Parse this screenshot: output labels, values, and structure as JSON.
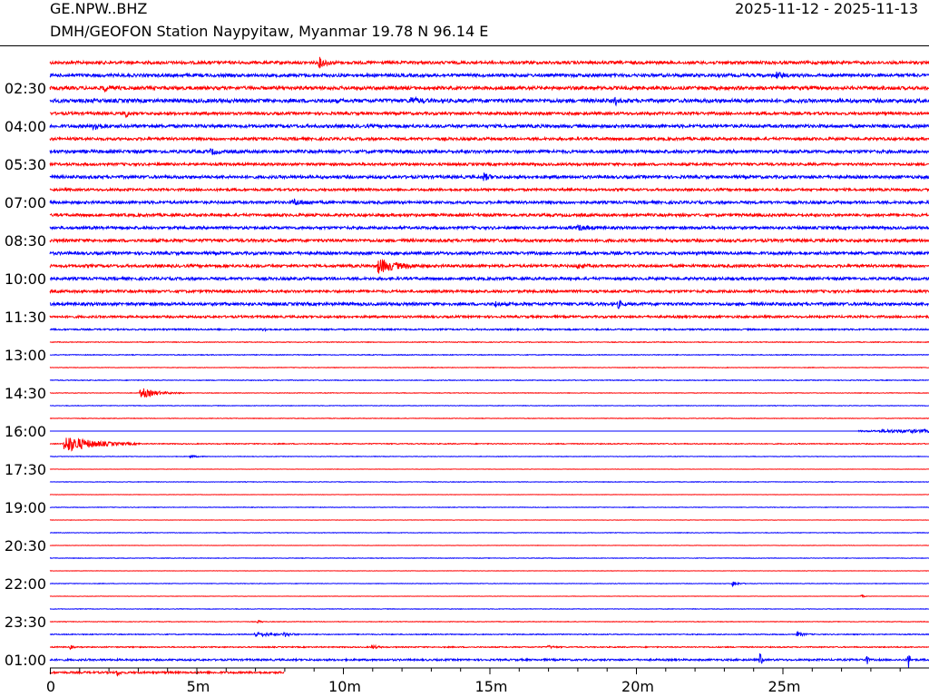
{
  "header": {
    "station": "GE.NPW..BHZ",
    "description": "DMH/GEOFON Station Naypyitaw, Myanmar  19.78 N 96.14 E",
    "date_range": "2025-11-12 - 2025-11-13"
  },
  "chart_data": {
    "type": "line",
    "title": "",
    "xlabel": "",
    "ylabel": "",
    "x_unit": "minutes",
    "xlim": [
      0,
      30
    ],
    "x_ticks": [
      {
        "value": 0,
        "label": "0"
      },
      {
        "value": 5,
        "label": "5m"
      },
      {
        "value": 10,
        "label": "10m"
      },
      {
        "value": 15,
        "label": "15m"
      },
      {
        "value": 20,
        "label": "20m"
      },
      {
        "value": 25,
        "label": "25m"
      }
    ],
    "minor_tick_step": 1,
    "trace_interval_minutes": 30,
    "colors": [
      "#ff0000",
      "#0000ff"
    ],
    "y_labels": [
      {
        "trace": 2,
        "label": "02:30"
      },
      {
        "trace": 5,
        "label": "04:00"
      },
      {
        "trace": 8,
        "label": "05:30"
      },
      {
        "trace": 11,
        "label": "07:00"
      },
      {
        "trace": 14,
        "label": "08:30"
      },
      {
        "trace": 17,
        "label": "10:00"
      },
      {
        "trace": 20,
        "label": "11:30"
      },
      {
        "trace": 23,
        "label": "13:00"
      },
      {
        "trace": 26,
        "label": "14:30"
      },
      {
        "trace": 29,
        "label": "16:00"
      },
      {
        "trace": 32,
        "label": "17:30"
      },
      {
        "trace": 35,
        "label": "19:00"
      },
      {
        "trace": 38,
        "label": "20:30"
      },
      {
        "trace": 41,
        "label": "22:00"
      },
      {
        "trace": 44,
        "label": "23:30"
      },
      {
        "trace": 47,
        "label": "01:00"
      }
    ],
    "traces": [
      {
        "noise": 1.6,
        "events": [
          {
            "t": 9.2,
            "amp": 5,
            "dur": 0.7
          }
        ]
      },
      {
        "noise": 1.7,
        "events": [
          {
            "t": 24.8,
            "amp": 3,
            "dur": 0.6
          }
        ]
      },
      {
        "noise": 1.8,
        "events": [
          {
            "t": 1.8,
            "amp": 3,
            "dur": 0.8
          }
        ]
      },
      {
        "noise": 2.0,
        "events": [
          {
            "t": 19.3,
            "amp": 4,
            "dur": 0.2
          },
          {
            "t": 12.3,
            "amp": 3,
            "dur": 0.8
          }
        ]
      },
      {
        "noise": 1.5,
        "events": [
          {
            "t": 2.6,
            "amp": 7,
            "dur": 0.15
          }
        ]
      },
      {
        "noise": 1.7,
        "events": [
          {
            "t": 1.5,
            "amp": 5,
            "dur": 0.6
          }
        ]
      },
      {
        "noise": 1.5,
        "events": []
      },
      {
        "noise": 1.7,
        "events": [
          {
            "t": 5.5,
            "amp": 2.5,
            "dur": 0.6
          }
        ]
      },
      {
        "noise": 1.4,
        "events": []
      },
      {
        "noise": 1.6,
        "events": [
          {
            "t": 14.8,
            "amp": 4,
            "dur": 0.5
          }
        ]
      },
      {
        "noise": 1.3,
        "events": []
      },
      {
        "noise": 1.5,
        "events": [
          {
            "t": 8.3,
            "amp": 3,
            "dur": 1.0
          }
        ]
      },
      {
        "noise": 1.5,
        "events": []
      },
      {
        "noise": 1.5,
        "events": [
          {
            "t": 18.0,
            "amp": 2.5,
            "dur": 1.0
          }
        ]
      },
      {
        "noise": 1.6,
        "events": []
      },
      {
        "noise": 1.6,
        "events": []
      },
      {
        "noise": 1.5,
        "events": [
          {
            "t": 11.2,
            "amp": 8,
            "dur": 1.6
          },
          {
            "t": 18.0,
            "amp": 2.5,
            "dur": 0.5
          }
        ]
      },
      {
        "noise": 1.5,
        "events": []
      },
      {
        "noise": 1.4,
        "events": []
      },
      {
        "noise": 1.6,
        "events": [
          {
            "t": 19.4,
            "amp": 4,
            "dur": 0.3
          },
          {
            "t": 15.2,
            "amp": 2.5,
            "dur": 0.3
          }
        ]
      },
      {
        "noise": 1.2,
        "events": []
      },
      {
        "noise": 0.8,
        "events": [
          {
            "t": 7.3,
            "amp": 3,
            "dur": 0.2
          }
        ]
      },
      {
        "noise": 0.4,
        "events": []
      },
      {
        "noise": 0.4,
        "events": []
      },
      {
        "noise": 0.3,
        "events": []
      },
      {
        "noise": 0.4,
        "events": []
      },
      {
        "noise": 0.3,
        "events": [
          {
            "t": 3.1,
            "amp": 6,
            "dur": 1.5
          }
        ]
      },
      {
        "noise": 0.3,
        "events": []
      },
      {
        "noise": 0.3,
        "events": []
      },
      {
        "noise": 0.3,
        "events": [],
        "segments": [
          {
            "t0": 27.6,
            "t1": 28.3,
            "noise": 0.9
          },
          {
            "t0": 28.3,
            "t1": 30,
            "noise": 1.8
          }
        ]
      },
      {
        "noise": 0.5,
        "events": [
          {
            "t": 0.5,
            "amp": 10,
            "dur": 2.6
          }
        ]
      },
      {
        "noise": 0.3,
        "events": [
          {
            "t": 4.8,
            "amp": 1.5,
            "dur": 0.6
          }
        ]
      },
      {
        "noise": 0.2,
        "events": []
      },
      {
        "noise": 0.3,
        "events": []
      },
      {
        "noise": 0.2,
        "events": []
      },
      {
        "noise": 0.3,
        "events": []
      },
      {
        "noise": 0.2,
        "events": []
      },
      {
        "noise": 0.3,
        "events": []
      },
      {
        "noise": 0.2,
        "events": []
      },
      {
        "noise": 0.3,
        "events": []
      },
      {
        "noise": 0.2,
        "events": []
      },
      {
        "noise": 0.3,
        "events": [
          {
            "t": 23.3,
            "amp": 3,
            "dur": 0.5
          }
        ]
      },
      {
        "noise": 0.2,
        "events": [
          {
            "t": 27.7,
            "amp": 2,
            "dur": 0.2
          }
        ]
      },
      {
        "noise": 0.3,
        "events": []
      },
      {
        "noise": 0.3,
        "events": [
          {
            "t": 7.1,
            "amp": 2,
            "dur": 0.3
          }
        ]
      },
      {
        "noise": 0.5,
        "events": [
          {
            "t": 7.0,
            "amp": 3,
            "dur": 1.5
          },
          {
            "t": 8.0,
            "amp": 2.5,
            "dur": 0.5
          },
          {
            "t": 25.5,
            "amp": 2.5,
            "dur": 0.6
          }
        ]
      },
      {
        "noise": 0.6,
        "events": [
          {
            "t": 0.7,
            "amp": 2.5,
            "dur": 0.2
          },
          {
            "t": 11.0,
            "amp": 2,
            "dur": 0.5
          },
          {
            "t": 17.0,
            "amp": 1.5,
            "dur": 0.5
          }
        ]
      },
      {
        "noise": 1.0,
        "events": [
          {
            "t": 24.25,
            "amp": 12,
            "dur": 0.12
          },
          {
            "t": 27.85,
            "amp": 12,
            "dur": 0.12
          },
          {
            "t": 29.3,
            "amp": 12,
            "dur": 0.12
          }
        ]
      },
      {
        "noise": 1.1,
        "t_end": 8.0,
        "events": [
          {
            "t": 2.3,
            "amp": 4,
            "dur": 0.2
          }
        ]
      }
    ]
  }
}
